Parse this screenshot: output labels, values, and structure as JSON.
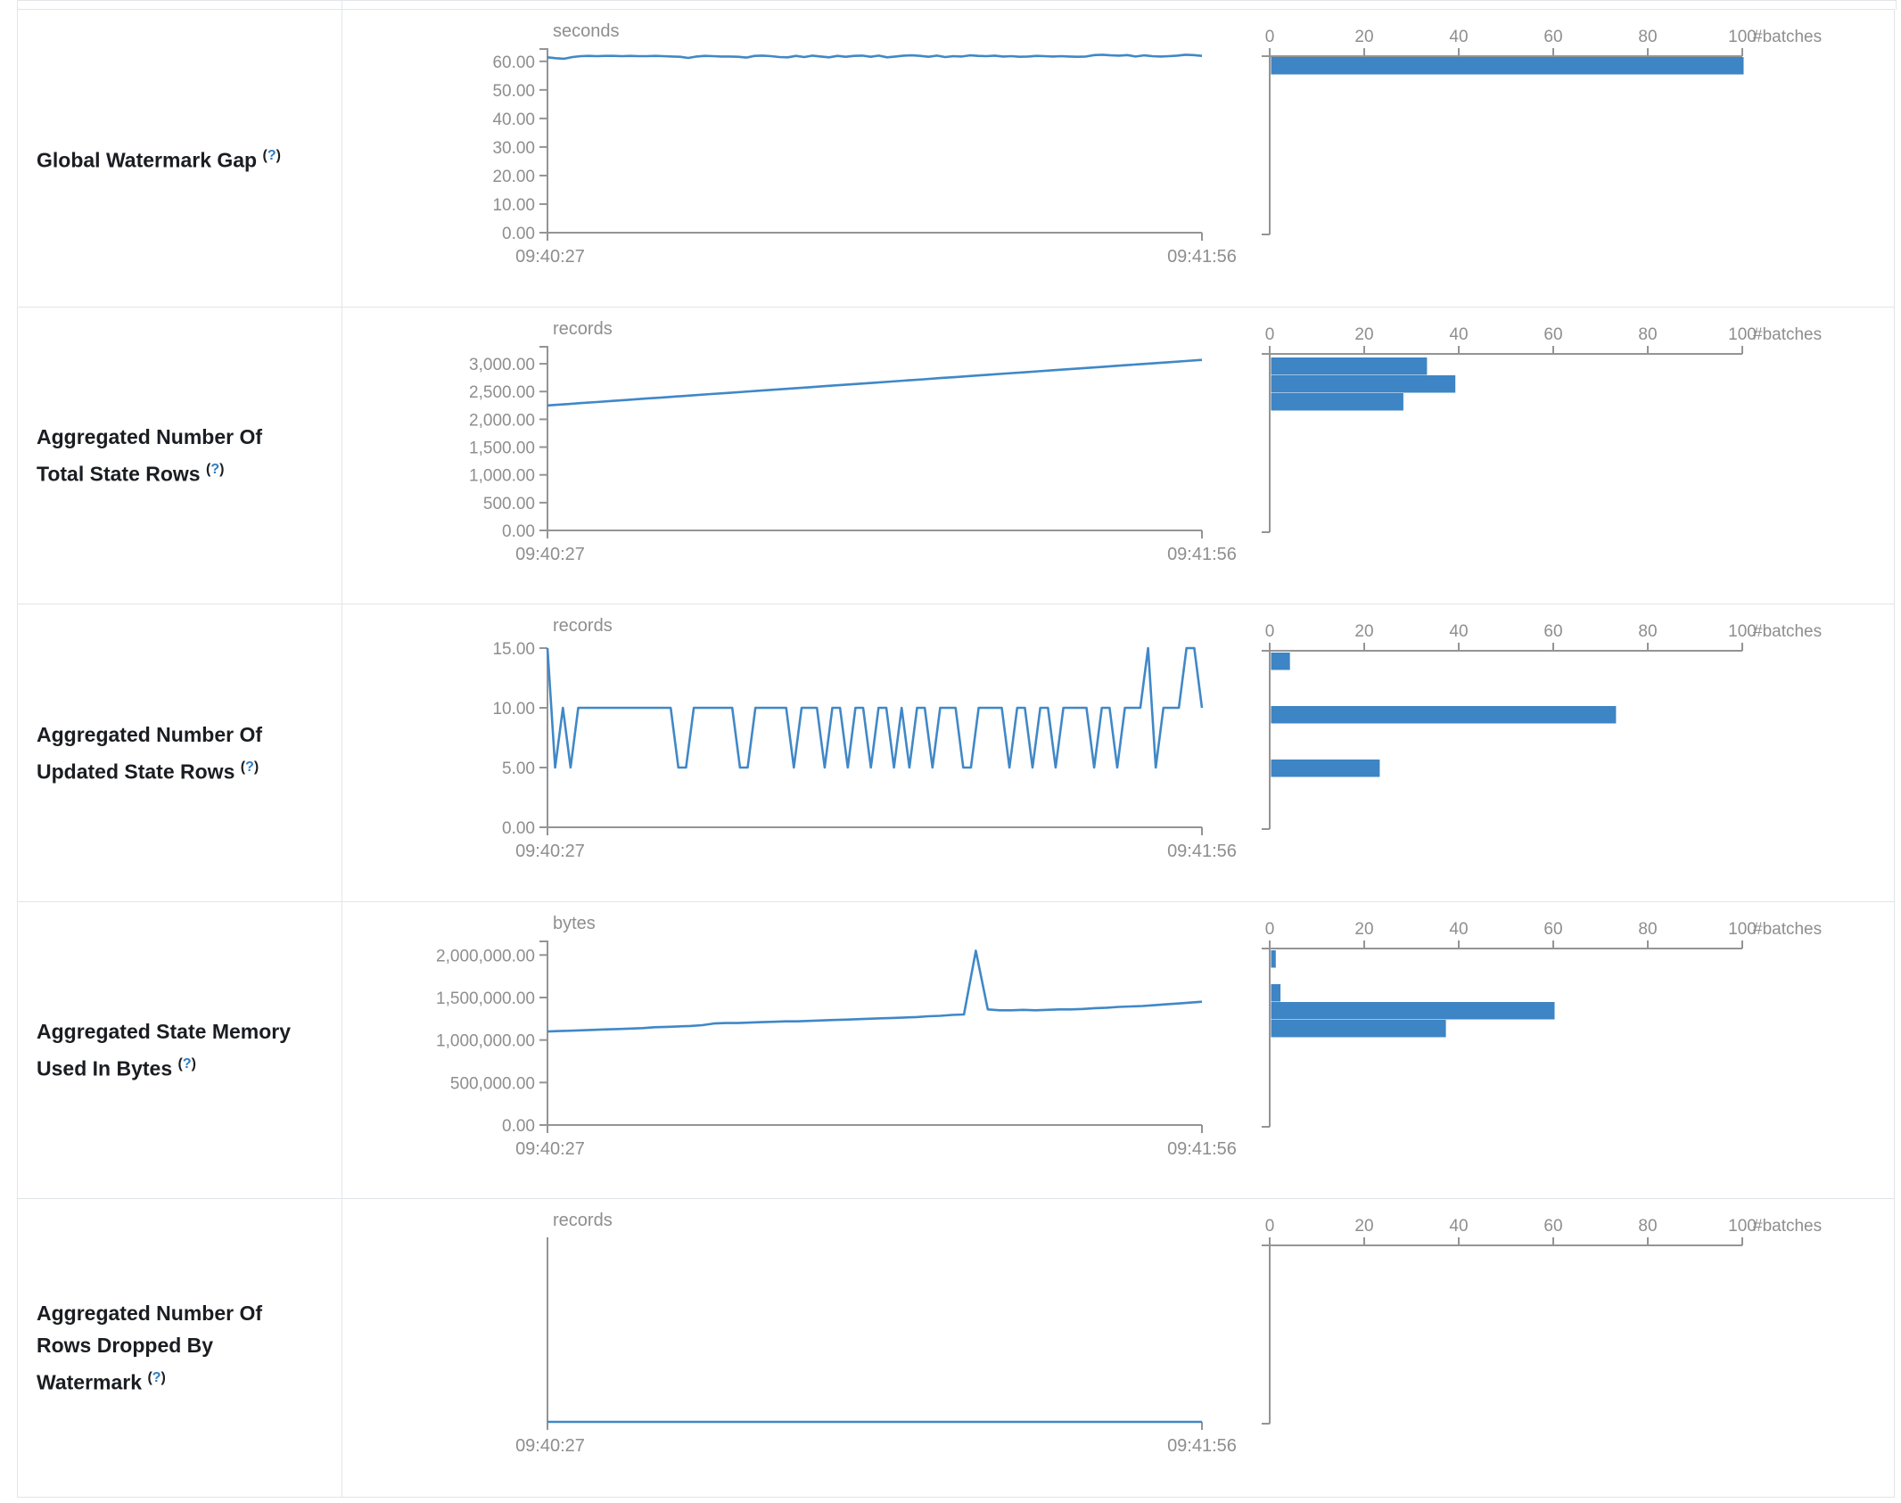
{
  "help": {
    "open": "(",
    "q": "?",
    "close": ")"
  },
  "colors": {
    "accent_line": "#4088c7",
    "accent_bar": "#3d85c5",
    "axis": "#949494",
    "tick_text": "#8e8e8e",
    "label_text": "#1a1d21",
    "border": "#e2e5e8"
  },
  "time_axis": {
    "start": "09:40:27",
    "end": "09:41:56"
  },
  "histogram_axis": {
    "ticks": [
      0,
      20,
      40,
      60,
      80,
      100
    ],
    "unit": "#batches",
    "max": 100
  },
  "chart_data": [
    {
      "name": "Global Watermark Gap",
      "type": "line",
      "unit": "seconds",
      "x_range": [
        "09:40:27",
        "09:41:56"
      ],
      "y_axis_max": 64,
      "has_top_tick": true,
      "yticks": [
        {
          "v": 60,
          "label": "60.00"
        },
        {
          "v": 50,
          "label": "50.00"
        },
        {
          "v": 40,
          "label": "40.00"
        },
        {
          "v": 30,
          "label": "30.00"
        },
        {
          "v": 20,
          "label": "20.00"
        },
        {
          "v": 10,
          "label": "10.00"
        },
        {
          "v": 0,
          "label": "0.00"
        }
      ],
      "series": [
        61.4,
        61.1,
        60.9,
        61.5,
        61.8,
        61.9,
        61.8,
        61.9,
        61.9,
        61.8,
        61.9,
        61.8,
        61.8,
        61.9,
        61.8,
        61.7,
        61.6,
        61.2,
        61.7,
        61.9,
        61.8,
        61.7,
        61.7,
        61.6,
        61.3,
        61.9,
        62.0,
        61.8,
        61.5,
        61.4,
        61.9,
        61.5,
        62.0,
        61.7,
        61.4,
        61.9,
        61.6,
        61.9,
        62.0,
        61.6,
        62.0,
        61.4,
        61.7,
        62.0,
        62.1,
        61.9,
        61.6,
        62.0,
        61.5,
        61.8,
        61.7,
        62.1,
        61.9,
        61.8,
        62.0,
        61.7,
        61.8,
        61.6,
        61.7,
        61.9,
        61.8,
        61.7,
        61.8,
        61.7,
        61.6,
        61.7,
        62.2,
        62.3,
        62.1,
        62.0,
        62.2,
        61.7,
        62.1,
        61.8,
        61.7,
        61.8,
        62.0,
        62.3,
        62.2,
        61.9
      ],
      "histogram_bars": [
        {
          "batches": 100,
          "y": 53
        }
      ]
    },
    {
      "name": "Aggregated Number Of Total State Rows",
      "type": "line",
      "unit": "records",
      "x_range": [
        "09:40:27",
        "09:41:56"
      ],
      "y_axis_max": 3290,
      "has_top_tick": true,
      "yticks": [
        {
          "v": 3000,
          "label": "3,000.00"
        },
        {
          "v": 2500,
          "label": "2,500.00"
        },
        {
          "v": 2000,
          "label": "2,000.00"
        },
        {
          "v": 1500,
          "label": "1,500.00"
        },
        {
          "v": 1000,
          "label": "1,000.00"
        },
        {
          "v": 500,
          "label": "500.00"
        },
        {
          "v": 0,
          "label": "0.00"
        }
      ],
      "series": [
        2250,
        2270,
        2291,
        2311,
        2332,
        2352,
        2373,
        2393,
        2414,
        2434,
        2455,
        2475,
        2496,
        2516,
        2537,
        2557,
        2578,
        2598,
        2619,
        2639,
        2660,
        2680,
        2701,
        2721,
        2742,
        2762,
        2783,
        2803,
        2824,
        2844,
        2865,
        2885,
        2906,
        2926,
        2947,
        2967,
        2988,
        3008,
        3029,
        3049,
        3070
      ],
      "histogram_bars": [
        {
          "batches": 33,
          "y": 56
        },
        {
          "batches": 39,
          "y": 76
        },
        {
          "batches": 28,
          "y": 96
        }
      ]
    },
    {
      "name": "Aggregated Number Of Updated State Rows",
      "type": "line",
      "unit": "records",
      "x_range": [
        "09:40:27",
        "09:41:56"
      ],
      "y_axis_max": 15.3,
      "has_top_tick": false,
      "yticks": [
        {
          "v": 15,
          "label": "15.00"
        },
        {
          "v": 10,
          "label": "10.00"
        },
        {
          "v": 5,
          "label": "5.00"
        },
        {
          "v": 0,
          "label": "0.00"
        }
      ],
      "series": [
        15,
        5,
        10,
        5,
        10,
        10,
        10,
        10,
        10,
        10,
        10,
        10,
        10,
        10,
        10,
        10,
        10,
        5,
        5,
        10,
        10,
        10,
        10,
        10,
        10,
        5,
        5,
        10,
        10,
        10,
        10,
        10,
        5,
        10,
        10,
        10,
        5,
        10,
        10,
        5,
        10,
        10,
        5,
        10,
        10,
        5,
        10,
        5,
        10,
        10,
        5,
        10,
        10,
        10,
        5,
        5,
        10,
        10,
        10,
        10,
        5,
        10,
        10,
        5,
        10,
        10,
        5,
        10,
        10,
        10,
        10,
        5,
        10,
        10,
        5,
        10,
        10,
        10,
        15,
        5,
        10,
        10,
        10,
        15,
        15,
        10
      ],
      "histogram_bars": [
        {
          "batches": 4,
          "y": 54
        },
        {
          "batches": 73,
          "y": 114
        },
        {
          "batches": 23,
          "y": 174
        }
      ]
    },
    {
      "name": "Aggregated State Memory Used In Bytes",
      "type": "line",
      "unit": "bytes",
      "x_range": [
        "09:40:27",
        "09:41:56"
      ],
      "y_axis_max": 2150000,
      "has_top_tick": true,
      "yticks": [
        {
          "v": 2000000,
          "label": "2,000,000.00"
        },
        {
          "v": 1500000,
          "label": "1,500,000.00"
        },
        {
          "v": 1000000,
          "label": "1,000,000.00"
        },
        {
          "v": 500000,
          "label": "500,000.00"
        },
        {
          "v": 0,
          "label": "0.00"
        }
      ],
      "series": [
        1100000,
        1105000,
        1110000,
        1115000,
        1120000,
        1125000,
        1130000,
        1135000,
        1140000,
        1150000,
        1155000,
        1160000,
        1165000,
        1175000,
        1195000,
        1200000,
        1200000,
        1205000,
        1210000,
        1215000,
        1220000,
        1220000,
        1225000,
        1230000,
        1235000,
        1240000,
        1245000,
        1250000,
        1255000,
        1260000,
        1265000,
        1270000,
        1280000,
        1285000,
        1295000,
        1300000,
        2050000,
        1360000,
        1350000,
        1350000,
        1355000,
        1350000,
        1355000,
        1360000,
        1360000,
        1365000,
        1375000,
        1380000,
        1390000,
        1395000,
        1400000,
        1410000,
        1420000,
        1430000,
        1440000,
        1450000
      ],
      "histogram_bars": [
        {
          "batches": 1,
          "y": 54
        },
        {
          "batches": 2,
          "y": 92
        },
        {
          "batches": 60,
          "y": 112
        },
        {
          "batches": 37,
          "y": 132
        }
      ]
    },
    {
      "name": "Aggregated Number Of Rows Dropped By Watermark",
      "type": "line",
      "unit": "records",
      "x_range": [
        "09:40:27",
        "09:41:56"
      ],
      "y_axis_max": 1,
      "has_top_tick": false,
      "yticks": [],
      "series": [
        0,
        0
      ],
      "histogram_bars": []
    }
  ]
}
